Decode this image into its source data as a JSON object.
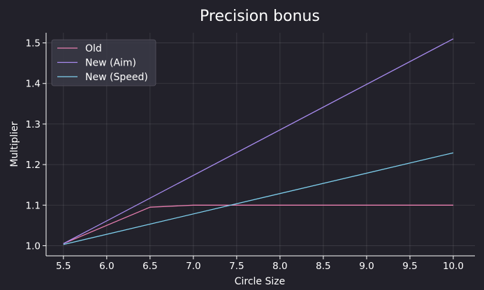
{
  "chart_data": {
    "type": "line",
    "title": "Precision bonus",
    "xlabel": "Circle Size",
    "ylabel": "Multiplier",
    "xlim": [
      5.3,
      10.25
    ],
    "ylim": [
      0.975,
      1.525
    ],
    "xticks": [
      5.5,
      6.0,
      6.5,
      7.0,
      7.5,
      8.0,
      8.5,
      9.0,
      9.5,
      10.0
    ],
    "xtick_labels": [
      "5.5",
      "6.0",
      "6.5",
      "7.0",
      "7.5",
      "8.0",
      "8.5",
      "9.0",
      "9.5",
      "10.0"
    ],
    "yticks": [
      1.0,
      1.1,
      1.2,
      1.3,
      1.4,
      1.5
    ],
    "ytick_labels": [
      "1.0",
      "1.1",
      "1.2",
      "1.3",
      "1.4",
      "1.5"
    ],
    "grid": true,
    "legend_position": "top-left",
    "series": [
      {
        "name": "Old",
        "color": "#e87fb0",
        "x": [
          5.5,
          6.5,
          7.0,
          8.0,
          9.0,
          10.0
        ],
        "y": [
          1.005,
          1.095,
          1.1,
          1.1,
          1.1,
          1.1
        ]
      },
      {
        "name": "New (Aim)",
        "color": "#a98cf0",
        "x": [
          5.5,
          10.0
        ],
        "y": [
          1.005,
          1.51
        ]
      },
      {
        "name": "New (Speed)",
        "color": "#7fd0ee",
        "x": [
          5.5,
          10.0
        ],
        "y": [
          1.003,
          1.229
        ]
      }
    ]
  }
}
